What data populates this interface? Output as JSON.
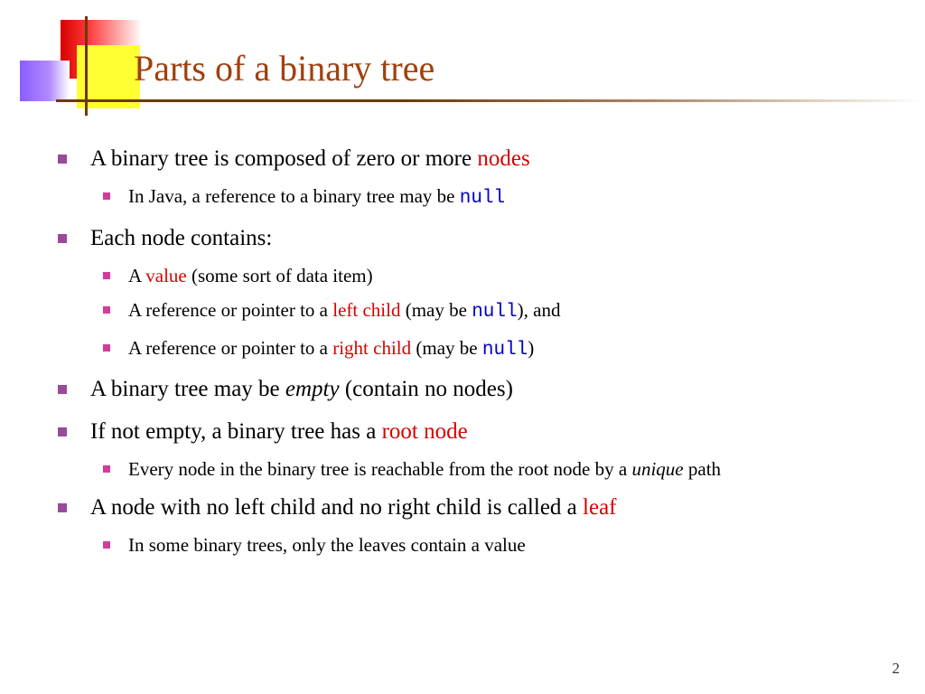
{
  "colors": {
    "title": "#a0410d",
    "bullet_l1": "#9a4a9a",
    "bullet_l2": "#d63a9a",
    "keyword_red": "#d80000",
    "code_blue": "#0000cc",
    "hline": "#6b3a0a",
    "background": "#ffffff",
    "deco_red": "#d80000",
    "deco_yellow": "#ffff33",
    "deco_purple": "#8a5cff"
  },
  "typography": {
    "title_fontsize": 40,
    "body_fontsize": 25,
    "sub_fontsize": 21,
    "font_family": "Times New Roman",
    "code_font_family": "Courier New"
  },
  "title": "Parts of a binary tree",
  "page_number": "2",
  "bullets": [
    {
      "segments": [
        {
          "t": "A binary tree is composed of zero or more "
        },
        {
          "t": "nodes",
          "cls": "red"
        }
      ],
      "children": [
        {
          "segments": [
            {
              "t": "In Java, a reference to a binary tree may be "
            },
            {
              "t": "null",
              "cls": "blue"
            }
          ]
        }
      ]
    },
    {
      "segments": [
        {
          "t": "Each node contains:"
        }
      ],
      "children": [
        {
          "segments": [
            {
              "t": "A "
            },
            {
              "t": "value",
              "cls": "red"
            },
            {
              "t": " (some sort of data item)"
            }
          ]
        },
        {
          "segments": [
            {
              "t": "A reference or pointer to a "
            },
            {
              "t": "left child",
              "cls": "red"
            },
            {
              "t": " (may be "
            },
            {
              "t": "null",
              "cls": "blue"
            },
            {
              "t": "), and"
            }
          ]
        },
        {
          "segments": [
            {
              "t": "A reference or pointer to a "
            },
            {
              "t": "right child",
              "cls": "red"
            },
            {
              "t": " (may be "
            },
            {
              "t": "null",
              "cls": "blue"
            },
            {
              "t": ")"
            }
          ]
        }
      ]
    },
    {
      "segments": [
        {
          "t": "A binary tree may be "
        },
        {
          "t": "empty",
          "cls": "ital"
        },
        {
          "t": " (contain no nodes)"
        }
      ]
    },
    {
      "segments": [
        {
          "t": "If not empty, a binary tree has a "
        },
        {
          "t": "root node",
          "cls": "red"
        }
      ],
      "children": [
        {
          "segments": [
            {
              "t": "Every node in the binary tree is reachable from the root node by a "
            },
            {
              "t": "unique",
              "cls": "ital"
            },
            {
              "t": " path"
            }
          ]
        }
      ]
    },
    {
      "segments": [
        {
          "t": "A node with no left child and no right child is called a "
        },
        {
          "t": "leaf",
          "cls": "red"
        }
      ],
      "children": [
        {
          "segments": [
            {
              "t": "In some binary trees, only the leaves contain a value"
            }
          ]
        }
      ]
    }
  ]
}
